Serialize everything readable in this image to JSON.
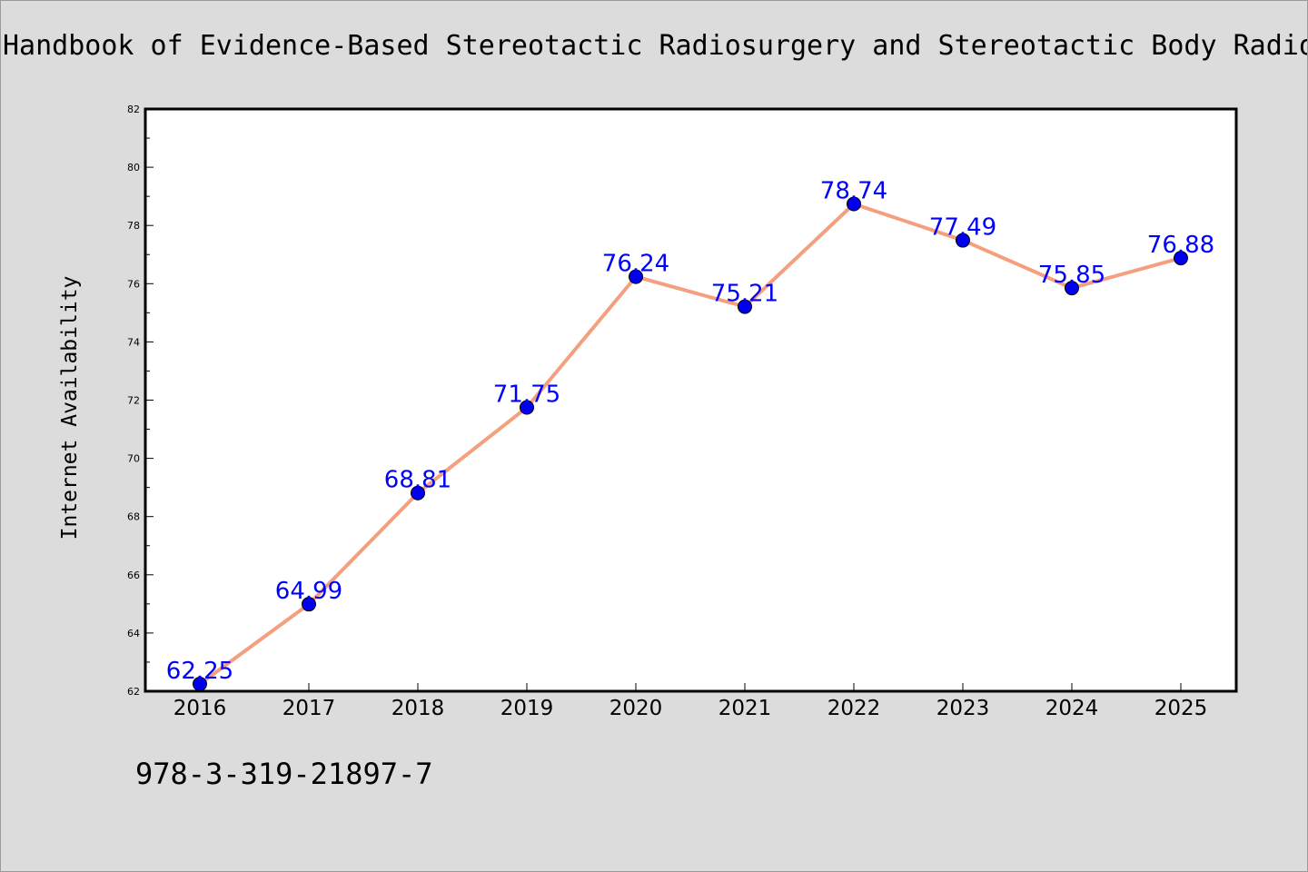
{
  "chart_data": {
    "type": "line",
    "title": "Handbook of Evidence-Based Stereotactic Radiosurgery and Stereotactic Body Radio",
    "xlabel": "",
    "ylabel": "Internet Availability",
    "x": [
      "2016",
      "2017",
      "2018",
      "2019",
      "2020",
      "2021",
      "2022",
      "2023",
      "2024",
      "2025"
    ],
    "series": [
      {
        "values": [
          62.25,
          64.99,
          68.81,
          71.75,
          76.24,
          75.21,
          78.74,
          77.49,
          75.85,
          76.88
        ],
        "data_labels": [
          "62.25",
          "64.99",
          "68.81",
          "71.75",
          "76.24",
          "75.21",
          "78.74",
          "77.49",
          "75.85",
          "76.88"
        ]
      }
    ],
    "ylim": [
      62,
      82
    ],
    "yticks": [
      62,
      64,
      66,
      68,
      70,
      72,
      74,
      76,
      78,
      80,
      82
    ],
    "grid": false,
    "legend": "none",
    "colors": {
      "line": "#f4a07f",
      "marker": "#0000ee",
      "data_label": "#0000ff",
      "plot_background": "#ffffff",
      "figure_background": "#dcdcdc"
    }
  },
  "footer": {
    "isbn": "978-3-319-21897-7"
  }
}
